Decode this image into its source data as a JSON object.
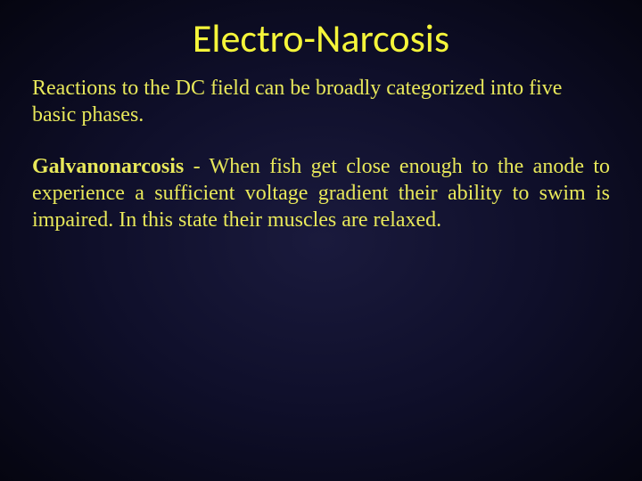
{
  "colors": {
    "title_color": "#f5f53a",
    "text_color": "#e8e85a",
    "background_center": "#1a1a3d",
    "background_mid": "#0f0f2a",
    "background_edge": "#050510"
  },
  "typography": {
    "title_fontsize": 44,
    "body_fontsize": 24,
    "title_fontfamily": "Candara, Calibri, sans-serif",
    "body_fontfamily": "Georgia, Times New Roman, serif"
  },
  "title": "Electro-Narcosis",
  "intro": "Reactions to the DC field can be broadly categorized into five basic phases.",
  "term": "Galvanonarcosis",
  "definition_rest": " - When fish get close enough to the anode to experience a sufficient voltage gradient their ability to swim is impaired. In this state their muscles are relaxed."
}
